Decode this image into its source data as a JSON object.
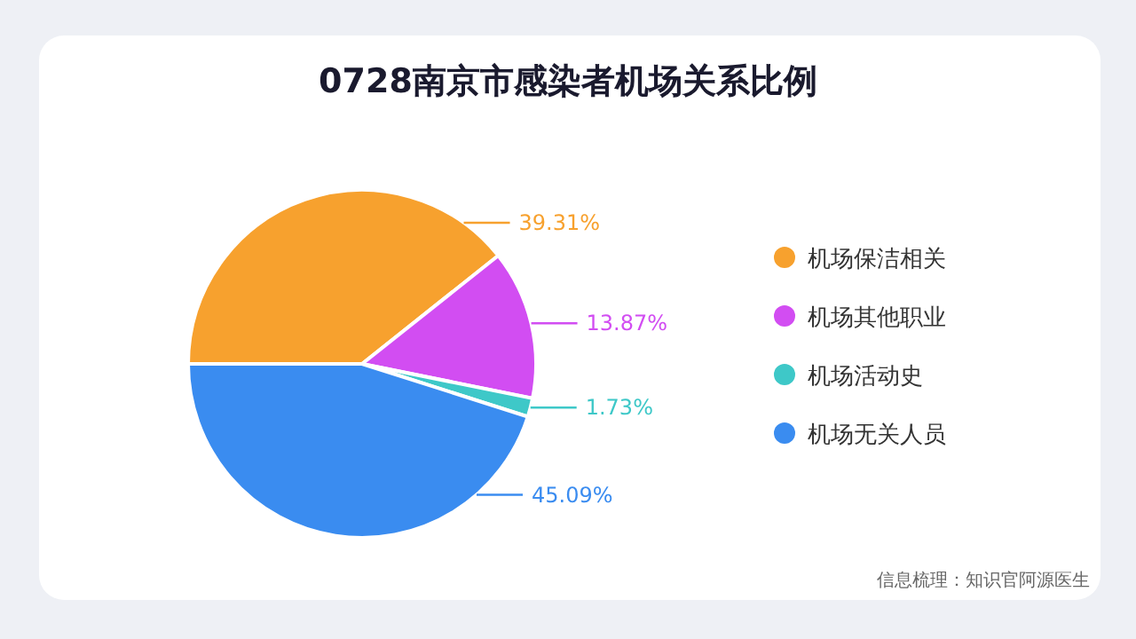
{
  "chart_data": {
    "type": "pie",
    "title": "0728南京市感染者机场关系比例",
    "categories": [
      "机场保洁相关",
      "机场其他职业",
      "机场活动史",
      "机场无关人员"
    ],
    "values": [
      39.31,
      13.87,
      1.73,
      45.09
    ],
    "colors": [
      "#f7a12e",
      "#d24df2",
      "#3ec8c8",
      "#3a8cf0"
    ],
    "value_labels": [
      "39.31%",
      "13.87%",
      "1.73%",
      "45.09%"
    ],
    "legend": "right",
    "annotations": [
      "信息梳理：知识官阿源医生"
    ]
  }
}
